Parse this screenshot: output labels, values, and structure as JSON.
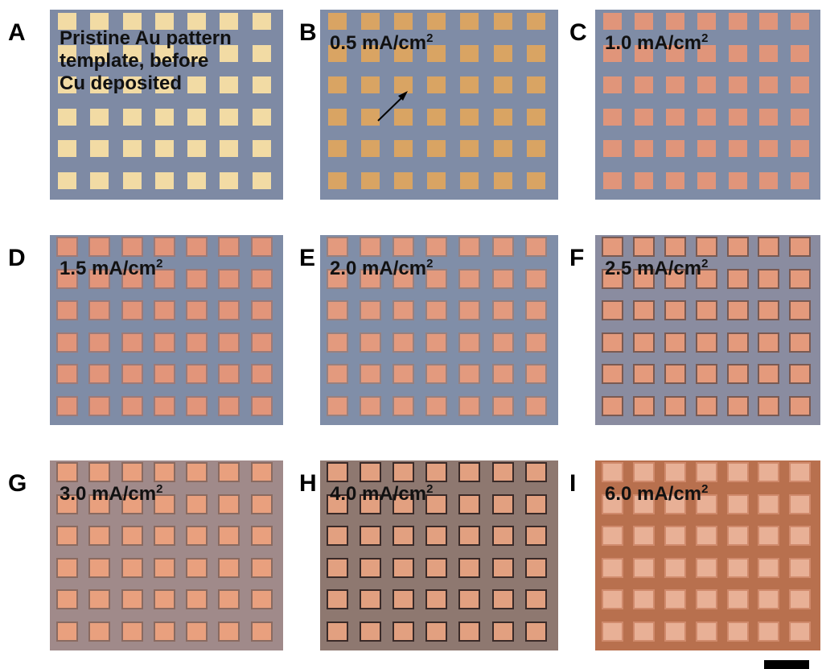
{
  "panels": [
    {
      "letter": "A",
      "label": [
        "Pristine Au pattern",
        "template, before",
        "Cu deposited"
      ]
    },
    {
      "letter": "B",
      "label": [
        "0.5 mA/cm"
      ],
      "sup": "2"
    },
    {
      "letter": "C",
      "label": [
        "1.0 mA/cm"
      ],
      "sup": "2"
    },
    {
      "letter": "D",
      "label": [
        "1.5 mA/cm"
      ],
      "sup": "2"
    },
    {
      "letter": "E",
      "label": [
        "2.0 mA/cm"
      ],
      "sup": "2"
    },
    {
      "letter": "F",
      "label": [
        "2.5 mA/cm"
      ],
      "sup": "2"
    },
    {
      "letter": "G",
      "label": [
        "3.0 mA/cm"
      ],
      "sup": "2"
    },
    {
      "letter": "H",
      "label": [
        "4.0 mA/cm"
      ],
      "sup": "2"
    },
    {
      "letter": "I",
      "label": [
        "6.0 mA/cm"
      ],
      "sup": "2"
    }
  ]
}
